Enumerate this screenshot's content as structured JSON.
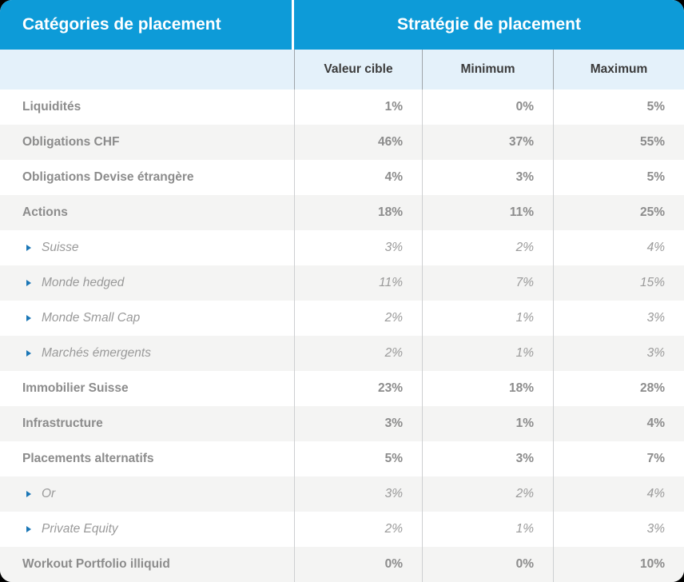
{
  "page_background": "#000000",
  "table": {
    "header": {
      "categories_title": "Catégories de placement",
      "strategy_title": "Stratégie de placement"
    },
    "columns": [
      "Valeur cible",
      "Minimum",
      "Maximum"
    ],
    "rows": [
      {
        "label": "Liquidités",
        "indent": false,
        "values": [
          "1%",
          "0%",
          "5%"
        ]
      },
      {
        "label": "Obligations CHF",
        "indent": false,
        "values": [
          "46%",
          "37%",
          "55%"
        ]
      },
      {
        "label": "Obligations Devise étrangère",
        "indent": false,
        "values": [
          "4%",
          "3%",
          "5%"
        ]
      },
      {
        "label": "Actions",
        "indent": false,
        "values": [
          "18%",
          "11%",
          "25%"
        ]
      },
      {
        "label": "Suisse",
        "indent": true,
        "values": [
          "3%",
          "2%",
          "4%"
        ]
      },
      {
        "label": "Monde hedged",
        "indent": true,
        "values": [
          "11%",
          "7%",
          "15%"
        ]
      },
      {
        "label": "Monde Small Cap",
        "indent": true,
        "values": [
          "2%",
          "1%",
          "3%"
        ]
      },
      {
        "label": "Marchés émergents",
        "indent": true,
        "values": [
          "2%",
          "1%",
          "3%"
        ]
      },
      {
        "label": "Immobilier Suisse",
        "indent": false,
        "values": [
          "23%",
          "18%",
          "28%"
        ]
      },
      {
        "label": "Infrastructure",
        "indent": false,
        "values": [
          "3%",
          "1%",
          "4%"
        ]
      },
      {
        "label": "Placements alternatifs",
        "indent": false,
        "values": [
          "5%",
          "3%",
          "7%"
        ]
      },
      {
        "label": "Or",
        "indent": true,
        "values": [
          "3%",
          "2%",
          "4%"
        ]
      },
      {
        "label": "Private Equity",
        "indent": true,
        "values": [
          "2%",
          "1%",
          "3%"
        ]
      },
      {
        "label": "Workout Portfolio illiquid",
        "indent": false,
        "values": [
          "0%",
          "0%",
          "10%"
        ]
      }
    ]
  },
  "icons": {
    "sub_item_bullet": "triangle-right-icon"
  },
  "colors": {
    "header_blue": "#0D9BD8",
    "subheader_blue": "#E4F1FA",
    "row_alt_gray": "#F4F4F3",
    "row_white": "#FFFFFF",
    "category_text": "#8C8C8C",
    "sub_text": "#9A9A9A",
    "subheader_text": "#3B3B3B",
    "bullet_blue": "#1A76B6",
    "header_text": "#FFFFFF"
  },
  "chart_data": {
    "type": "table",
    "title": "Stratégie de placement",
    "columns": [
      "Catégories de placement",
      "Valeur cible",
      "Minimum",
      "Maximum"
    ],
    "rows": [
      [
        "Liquidités",
        "1%",
        "0%",
        "5%"
      ],
      [
        "Obligations CHF",
        "46%",
        "37%",
        "55%"
      ],
      [
        "Obligations Devise étrangère",
        "4%",
        "3%",
        "5%"
      ],
      [
        "Actions",
        "18%",
        "11%",
        "25%"
      ],
      [
        "Suisse",
        "3%",
        "2%",
        "4%"
      ],
      [
        "Monde hedged",
        "11%",
        "7%",
        "15%"
      ],
      [
        "Monde Small Cap",
        "2%",
        "1%",
        "3%"
      ],
      [
        "Marchés émergents",
        "2%",
        "1%",
        "3%"
      ],
      [
        "Immobilier Suisse",
        "23%",
        "18%",
        "28%"
      ],
      [
        "Infrastructure",
        "3%",
        "1%",
        "4%"
      ],
      [
        "Placements alternatifs",
        "5%",
        "3%",
        "7%"
      ],
      [
        "Or",
        "3%",
        "2%",
        "4%"
      ],
      [
        "Private Equity",
        "2%",
        "1%",
        "3%"
      ],
      [
        "Workout Portfolio illiquid",
        "0%",
        "0%",
        "10%"
      ]
    ],
    "notes": "Indented italic sub-rows: Suisse, Monde hedged, Monde Small Cap, Marchés émergents (under Actions); Or, Private Equity (under Placements alternatifs)"
  }
}
